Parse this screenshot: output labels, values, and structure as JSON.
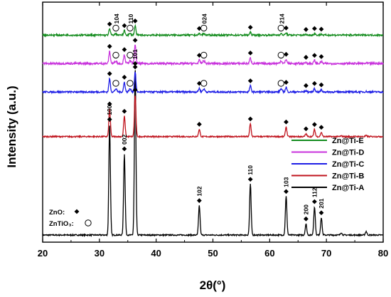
{
  "chart_data": {
    "type": "line",
    "xlabel": "2θ(°)",
    "ylabel": "Intensity (a.u.)",
    "xlim": [
      20,
      80
    ],
    "xticks": [
      "20",
      "30",
      "40",
      "50",
      "60",
      "70",
      "80"
    ],
    "series": [
      {
        "name": "Zn@Ti-A",
        "color": "#000000",
        "baseline": 0.0,
        "scale": 1.0,
        "noise": 0.003,
        "hasTiO3": false
      },
      {
        "name": "Zn@Ti-B",
        "color": "#c0141e",
        "baseline": 0.485,
        "scale": 0.25,
        "noise": 0.003,
        "hasTiO3": false
      },
      {
        "name": "Zn@Ti-C",
        "color": "#1e1ee6",
        "baseline": 0.705,
        "scale": 0.12,
        "noise": 0.004,
        "hasTiO3": true
      },
      {
        "name": "Zn@Ti-D",
        "color": "#c832dc",
        "baseline": 0.845,
        "scale": 0.11,
        "noise": 0.005,
        "hasTiO3": true
      },
      {
        "name": "Zn@Ti-E",
        "color": "#148c1e",
        "baseline": 0.985,
        "scale": 0.055,
        "noise": 0.004,
        "hasTiO3": true
      }
    ],
    "zno_peaks": [
      {
        "x": 31.8,
        "h": 0.545,
        "label": "100"
      },
      {
        "x": 34.4,
        "h": 0.4,
        "label": "002"
      },
      {
        "x": 36.3,
        "h": 0.82,
        "label": "101"
      },
      {
        "x": 47.6,
        "h": 0.145,
        "label": "102"
      },
      {
        "x": 56.6,
        "h": 0.25,
        "label": "110"
      },
      {
        "x": 62.9,
        "h": 0.19,
        "label": "103"
      },
      {
        "x": 66.4,
        "h": 0.055,
        "label": "200"
      },
      {
        "x": 67.9,
        "h": 0.14,
        "label": "112"
      },
      {
        "x": 69.1,
        "h": 0.085,
        "label": "201"
      },
      {
        "x": 72.6,
        "h": 0.012,
        "label": ""
      },
      {
        "x": 77.0,
        "h": 0.018,
        "label": ""
      }
    ],
    "zntio3_peaks": [
      {
        "x": 32.9,
        "label": "104"
      },
      {
        "x": 35.4,
        "label": "110"
      },
      {
        "x": 48.4,
        "label": "024"
      },
      {
        "x": 62.0,
        "label": "214"
      }
    ],
    "phase_key": {
      "zno": "ZnO:",
      "zntio3": "ZnTiO₃:"
    },
    "legend_placement": "right"
  }
}
